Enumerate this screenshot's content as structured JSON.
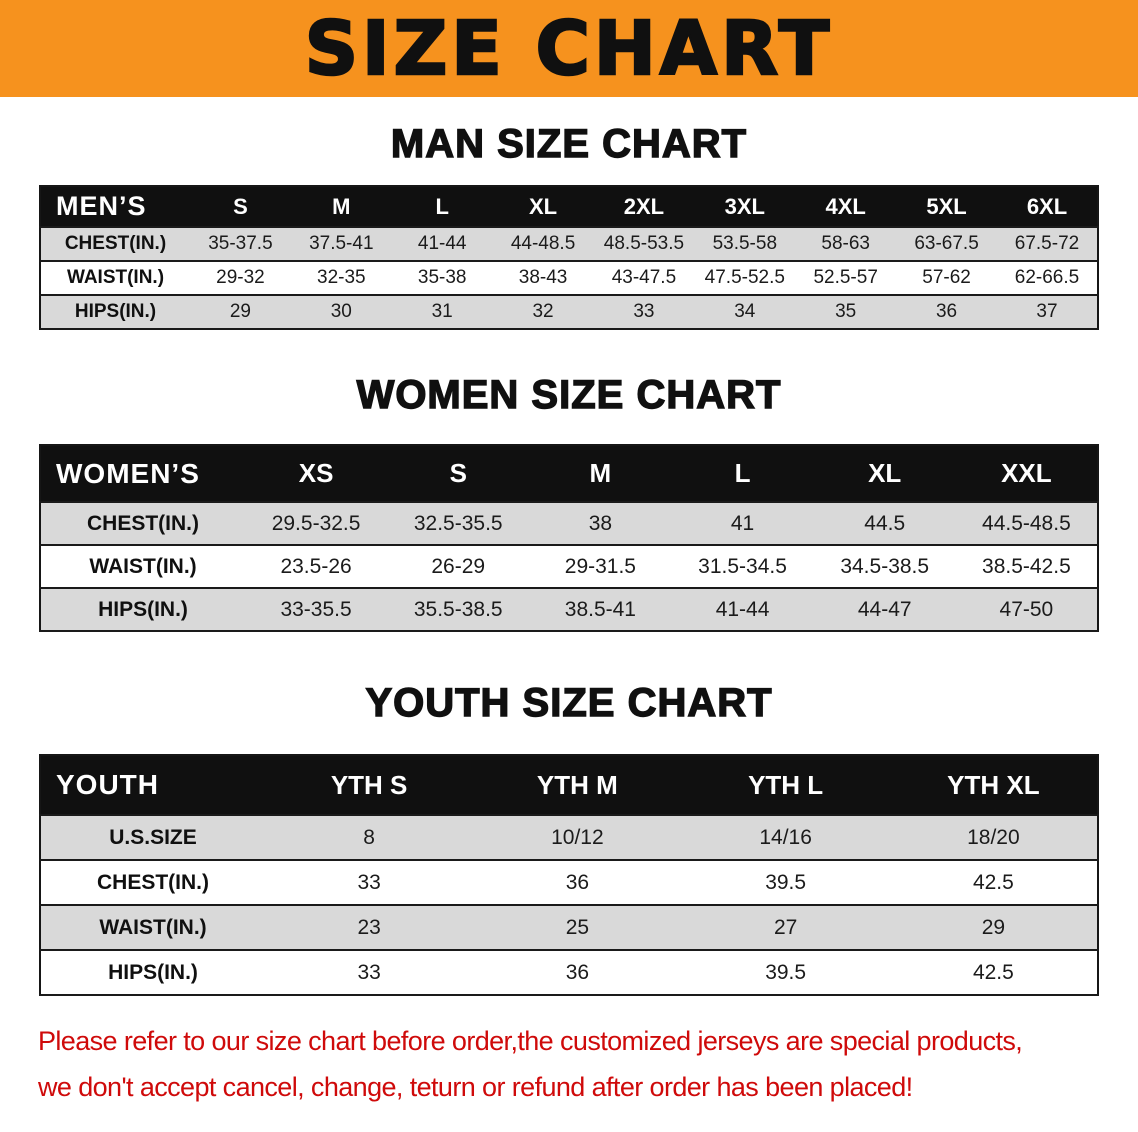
{
  "banner": {
    "title": "SIZE CHART"
  },
  "colors": {
    "banner_bg": "#f6921e",
    "header_bg": "#101010",
    "row_alt": "#d9d9d9",
    "disclaimer_color": "#cf0a0a"
  },
  "sections": [
    {
      "heading": "MAN SIZE CHART",
      "table": {
        "label": "MEN’S",
        "columns": [
          "S",
          "M",
          "L",
          "XL",
          "2XL",
          "3XL",
          "4XL",
          "5XL",
          "6XL"
        ],
        "rows": [
          {
            "label": "CHEST(IN.)",
            "values": [
              "35-37.5",
              "37.5-41",
              "41-44",
              "44-48.5",
              "48.5-53.5",
              "53.5-58",
              "58-63",
              "63-67.5",
              "67.5-72"
            ]
          },
          {
            "label": "WAIST(IN.)",
            "values": [
              "29-32",
              "32-35",
              "35-38",
              "38-43",
              "43-47.5",
              "47.5-52.5",
              "52.5-57",
              "57-62",
              "62-66.5"
            ]
          },
          {
            "label": "HIPS(IN.)",
            "values": [
              "29",
              "30",
              "31",
              "32",
              "33",
              "34",
              "35",
              "36",
              "37"
            ]
          }
        ]
      }
    },
    {
      "heading": "WOMEN SIZE CHART",
      "table": {
        "label": "WOMEN’S",
        "columns": [
          "XS",
          "S",
          "M",
          "L",
          "XL",
          "XXL"
        ],
        "rows": [
          {
            "label": "CHEST(IN.)",
            "values": [
              "29.5-32.5",
              "32.5-35.5",
              "38",
              "41",
              "44.5",
              "44.5-48.5"
            ]
          },
          {
            "label": "WAIST(IN.)",
            "values": [
              "23.5-26",
              "26-29",
              "29-31.5",
              "31.5-34.5",
              "34.5-38.5",
              "38.5-42.5"
            ]
          },
          {
            "label": "HIPS(IN.)",
            "values": [
              "33-35.5",
              "35.5-38.5",
              "38.5-41",
              "41-44",
              "44-47",
              "47-50"
            ]
          }
        ]
      }
    },
    {
      "heading": "YOUTH SIZE CHART",
      "table": {
        "label": "YOUTH",
        "columns": [
          "YTH S",
          "YTH M",
          "YTH L",
          "YTH XL"
        ],
        "rows": [
          {
            "label": "U.S.SIZE",
            "values": [
              "8",
              "10/12",
              "14/16",
              "18/20"
            ]
          },
          {
            "label": "CHEST(IN.)",
            "values": [
              "33",
              "36",
              "39.5",
              "42.5"
            ]
          },
          {
            "label": "WAIST(IN.)",
            "values": [
              "23",
              "25",
              "27",
              "29"
            ]
          },
          {
            "label": "HIPS(IN.)",
            "values": [
              "33",
              "36",
              "39.5",
              "42.5"
            ]
          }
        ]
      }
    }
  ],
  "disclaimer": {
    "lines": [
      "Please refer to our size chart before order,the customized jerseys are special products,",
      "we don't accept cancel, change, teturn or refund after order has been placed!"
    ]
  }
}
